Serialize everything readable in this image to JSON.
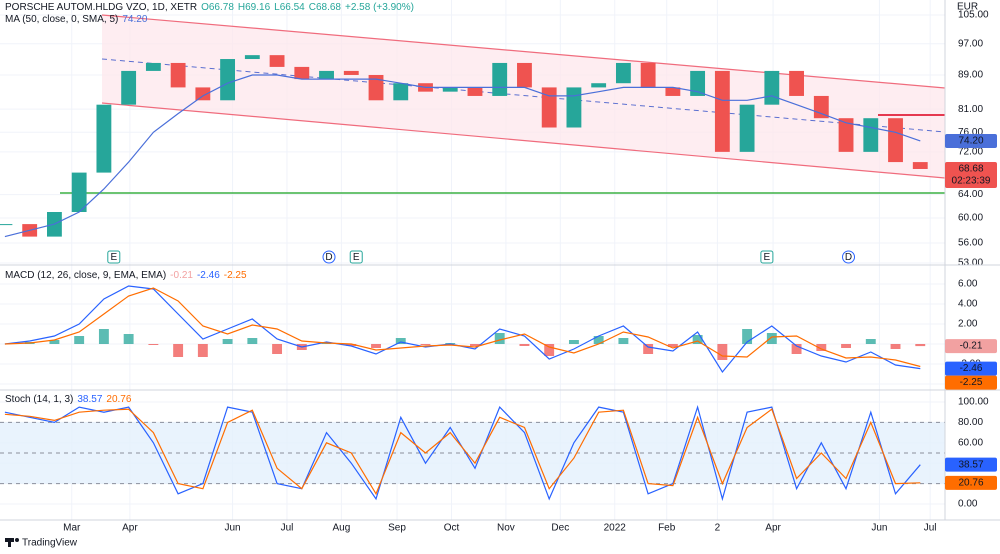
{
  "chart_data": [
    {
      "type": "candlestick",
      "title": "PORSCHE AUTOM.HLDG VZO, 1D, XETR",
      "ohlc": [
        "O66.78",
        "H69.16",
        "L66.54",
        "C68.68",
        "+2.58 (+3.90%)"
      ],
      "currency": "EUR",
      "countdown": "02:23:39",
      "x": [
        0,
        1,
        2,
        3,
        4,
        5,
        6,
        7,
        8,
        9,
        10,
        11,
        12,
        13,
        14,
        15,
        16,
        17,
        18,
        19,
        20,
        21,
        22,
        23,
        24,
        25,
        26,
        27,
        28,
        29,
        30,
        31,
        32,
        33,
        34,
        35,
        36,
        37
      ],
      "xlim": [
        -0.2,
        38
      ],
      "xticks": [
        {
          "value": 2.7,
          "label": "Mar"
        },
        {
          "value": 5.05,
          "label": "Apr"
        },
        {
          "value": 9.2,
          "label": "Jun"
        },
        {
          "value": 11.4,
          "label": "Jul"
        },
        {
          "value": 13.6,
          "label": "Aug"
        },
        {
          "value": 15.85,
          "label": "Sep"
        },
        {
          "value": 18.05,
          "label": "Oct"
        },
        {
          "value": 20.25,
          "label": "Nov"
        },
        {
          "value": 22.45,
          "label": "Dec"
        },
        {
          "value": 24.65,
          "label": "2022"
        },
        {
          "value": 26.75,
          "label": "Feb"
        },
        {
          "value": 28.8,
          "label": "2"
        },
        {
          "value": 31.05,
          "label": "Apr"
        },
        {
          "value": 35.35,
          "label": "Jun"
        },
        {
          "value": 37.4,
          "label": "Jul"
        }
      ],
      "values": [
        59,
        57,
        61,
        68,
        82,
        90,
        92,
        86,
        83,
        93,
        94,
        91,
        88,
        90,
        89,
        83,
        87,
        85,
        86,
        84,
        92,
        86,
        77,
        86,
        87,
        92,
        86,
        84,
        90,
        72,
        82,
        90,
        84,
        79,
        72,
        79,
        70,
        68.68
      ],
      "colors": {
        "up": "#26a69a",
        "down": "#ef5350"
      },
      "series": [
        {
          "name": "MA (50, close, 0, SMA, 5)",
          "color": "#4a6fd9",
          "values": [
            57,
            58,
            59,
            61,
            65,
            70,
            76,
            80,
            84,
            87,
            89,
            89,
            88,
            88,
            88,
            88,
            87,
            86,
            86,
            86,
            86,
            86,
            84,
            84,
            85,
            86,
            86,
            86,
            85,
            83,
            83,
            84,
            82,
            80,
            78,
            77,
            76,
            74.2
          ],
          "value_labels": [
            null,
            null,
            null,
            null,
            null,
            null,
            null,
            null,
            null,
            null,
            null,
            null,
            null,
            null,
            null,
            null,
            null,
            null,
            null,
            null,
            null,
            null,
            null,
            null,
            null,
            null,
            null,
            null,
            null,
            null,
            null,
            null,
            null,
            null,
            null,
            null,
            null,
            "74.20"
          ]
        }
      ],
      "ylim": [
        53,
        105
      ],
      "log_scale": true,
      "yticks": [
        {
          "value": 105,
          "label": "105.00"
        },
        {
          "value": 97,
          "label": "97.00"
        },
        {
          "value": 89,
          "label": "89.00"
        },
        {
          "value": 81,
          "label": "81.00"
        },
        {
          "value": 76,
          "label": "76.00"
        },
        {
          "value": 72,
          "label": "72.00"
        },
        {
          "value": 64,
          "label": "64.00"
        },
        {
          "value": 60,
          "label": "60.00"
        },
        {
          "value": 56,
          "label": "56.00"
        },
        {
          "value": 53,
          "label": "53.00"
        }
      ],
      "grid": true,
      "events": [
        {
          "x": 4.4,
          "label": "E"
        },
        {
          "x": 13.1,
          "label": "D"
        },
        {
          "x": 14.2,
          "label": "E"
        },
        {
          "x": 30.8,
          "label": "E"
        },
        {
          "x": 34.1,
          "label": "D"
        }
      ],
      "event_colors": {
        "E": "#26a69a",
        "D": "#2962ff"
      }
    },
    {
      "type": "macd",
      "title": "MACD (12, 26, close, 9, EMA, EMA)",
      "series": [
        {
          "color": "#f2a1a1",
          "colors": {
            "up": "#26a69a",
            "down": "#ef5350"
          },
          "values": [
            0,
            0.2,
            0.4,
            0.8,
            1.5,
            1,
            -0.1,
            -1.3,
            -1.3,
            0.5,
            0.6,
            -1,
            -0.6,
            0.1,
            -0.2,
            -0.4,
            0.6,
            -0.1,
            0.1,
            -0.2,
            1.1,
            -0.2,
            -1.2,
            0.4,
            0.8,
            0.6,
            -1,
            -0.3,
            0.9,
            -1.6,
            1.5,
            1.1,
            -1,
            -0.7,
            -0.4,
            0.5,
            -0.5,
            -0.21
          ]
        },
        {
          "color": "#2962ff",
          "values": [
            0,
            0.3,
            0.8,
            2,
            4.5,
            5.8,
            5.5,
            3,
            0.5,
            1.5,
            2.5,
            0.5,
            -0.3,
            0.2,
            -0.2,
            -1,
            0.2,
            -0.3,
            0,
            -0.5,
            1.5,
            0.8,
            -1.5,
            -0.5,
            0.8,
            1.8,
            -0.3,
            -0.7,
            1.2,
            -2.8,
            0.2,
            1.8,
            -0.2,
            -1.2,
            -1.8,
            -0.8,
            -2.1,
            -2.46
          ]
        },
        {
          "color": "#ff6d00",
          "values": [
            0,
            0.1,
            0.4,
            1.2,
            3,
            4.8,
            5.6,
            4.3,
            1.8,
            1,
            1.9,
            1.5,
            0.3,
            0.1,
            0,
            -0.6,
            -0.4,
            -0.2,
            -0.1,
            -0.3,
            0.4,
            1,
            -0.3,
            -0.9,
            0,
            1.2,
            0.7,
            -0.4,
            0.3,
            -1.2,
            -1.3,
            0.7,
            0.8,
            -0.5,
            -1.4,
            -1.3,
            -1.6,
            -2.25
          ]
        }
      ],
      "ylim": [
        -4.5,
        7.8
      ],
      "yticks": [
        {
          "value": 6,
          "label": "6.00"
        },
        {
          "value": 4,
          "label": "4.00"
        },
        {
          "value": 2,
          "label": "2.00"
        },
        {
          "value": 0,
          "label": "0.00"
        },
        {
          "value": -2,
          "label": "-2.00"
        },
        {
          "value": -4,
          "label": "-4.00"
        }
      ],
      "grid": true
    },
    {
      "type": "stochastic",
      "title": "Stoch (14, 1, 3)",
      "series": [
        {
          "color": "#2962ff",
          "values": [
            90,
            85,
            80,
            95,
            90,
            95,
            60,
            10,
            20,
            95,
            90,
            20,
            15,
            70,
            40,
            5,
            85,
            40,
            75,
            35,
            95,
            70,
            5,
            60,
            95,
            90,
            10,
            20,
            95,
            5,
            90,
            95,
            15,
            60,
            15,
            90,
            10,
            38.57
          ]
        },
        {
          "color": "#ff6d00",
          "values": [
            88,
            86,
            82,
            90,
            92,
            93,
            70,
            20,
            15,
            80,
            92,
            35,
            15,
            60,
            50,
            10,
            70,
            50,
            70,
            40,
            85,
            75,
            15,
            45,
            90,
            92,
            20,
            18,
            85,
            20,
            75,
            93,
            25,
            50,
            25,
            80,
            20,
            20.76
          ]
        }
      ],
      "levels": [
        20,
        50,
        80
      ],
      "ylim": [
        -14.7,
        110.8
      ],
      "yticks": [
        {
          "value": 100,
          "label": "100.00"
        },
        {
          "value": 80,
          "label": "80.00"
        },
        {
          "value": 60,
          "label": "60.00"
        },
        {
          "value": 40,
          "label": "40.00"
        },
        {
          "value": 20,
          "label": "20.00"
        },
        {
          "value": 0,
          "label": "0.00"
        }
      ],
      "grid": true
    }
  ],
  "footer": {
    "brand": "TradingView"
  }
}
